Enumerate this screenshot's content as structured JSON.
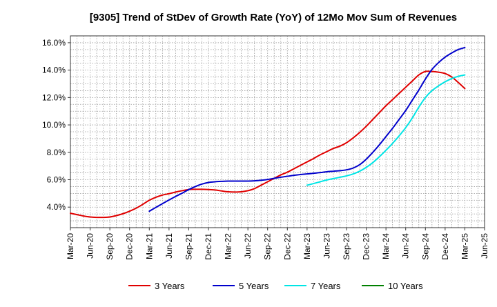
{
  "chart_data": {
    "type": "line",
    "title": "[9305]  Trend of StDev of Growth Rate (YoY) of 12Mo Mov Sum of Revenues",
    "xlabel": "",
    "ylabel": "",
    "ylim": [
      2.5,
      16.5
    ],
    "grid": true,
    "legend_position": "bottom",
    "x_ticks": [
      "Mar-20",
      "Jun-20",
      "Sep-20",
      "Dec-20",
      "Mar-21",
      "Jun-21",
      "Sep-21",
      "Dec-21",
      "Mar-22",
      "Jun-22",
      "Sep-22",
      "Dec-22",
      "Mar-23",
      "Jun-23",
      "Sep-23",
      "Dec-23",
      "Mar-24",
      "Jun-24",
      "Sep-24",
      "Dec-24",
      "Mar-25",
      "Jun-25"
    ],
    "y_ticks": [
      4.0,
      6.0,
      8.0,
      10.0,
      12.0,
      14.0,
      16.0
    ],
    "y_tick_labels": [
      "4.0%",
      "6.0%",
      "8.0%",
      "10.0%",
      "12.0%",
      "14.0%",
      "16.0%"
    ],
    "series": [
      {
        "name": "3 Years",
        "color": "#e00000",
        "x": [
          "Mar-20",
          "Apr-20",
          "May-20",
          "Jun-20",
          "Jul-20",
          "Aug-20",
          "Sep-20",
          "Oct-20",
          "Nov-20",
          "Dec-20",
          "Jan-21",
          "Feb-21",
          "Mar-21",
          "Apr-21",
          "May-21",
          "Jun-21",
          "Jul-21",
          "Aug-21",
          "Sep-21",
          "Oct-21",
          "Nov-21",
          "Dec-21",
          "Jan-22",
          "Feb-22",
          "Mar-22",
          "Apr-22",
          "May-22",
          "Jun-22",
          "Jul-22",
          "Aug-22",
          "Sep-22",
          "Oct-22",
          "Nov-22",
          "Dec-22",
          "Jan-23",
          "Feb-23",
          "Mar-23",
          "Apr-23",
          "May-23",
          "Jun-23",
          "Jul-23",
          "Aug-23",
          "Sep-23",
          "Oct-23",
          "Nov-23",
          "Dec-23",
          "Jan-24",
          "Feb-24",
          "Mar-24",
          "Apr-24",
          "May-24",
          "Jun-24",
          "Jul-24",
          "Aug-24",
          "Sep-24",
          "Oct-24",
          "Nov-24",
          "Dec-24",
          "Jan-25",
          "Feb-25",
          "Mar-25"
        ],
        "values": [
          3.55,
          3.45,
          3.35,
          3.28,
          3.25,
          3.25,
          3.28,
          3.38,
          3.52,
          3.7,
          3.92,
          4.2,
          4.5,
          4.72,
          4.88,
          4.98,
          5.1,
          5.2,
          5.28,
          5.3,
          5.3,
          5.28,
          5.25,
          5.18,
          5.12,
          5.1,
          5.12,
          5.2,
          5.35,
          5.6,
          5.85,
          6.1,
          6.35,
          6.55,
          6.8,
          7.05,
          7.3,
          7.55,
          7.82,
          8.05,
          8.28,
          8.45,
          8.7,
          9.05,
          9.45,
          9.9,
          10.4,
          10.9,
          11.4,
          11.85,
          12.3,
          12.75,
          13.2,
          13.65,
          13.9,
          13.9,
          13.85,
          13.75,
          13.5,
          13.1,
          12.65
        ]
      },
      {
        "name": "5 Years",
        "color": "#0000cc",
        "x": [
          "Mar-21",
          "Apr-21",
          "May-21",
          "Jun-21",
          "Jul-21",
          "Aug-21",
          "Sep-21",
          "Oct-21",
          "Nov-21",
          "Dec-21",
          "Jan-22",
          "Feb-22",
          "Mar-22",
          "Apr-22",
          "May-22",
          "Jun-22",
          "Jul-22",
          "Aug-22",
          "Sep-22",
          "Oct-22",
          "Nov-22",
          "Dec-22",
          "Jan-23",
          "Feb-23",
          "Mar-23",
          "Apr-23",
          "May-23",
          "Jun-23",
          "Jul-23",
          "Aug-23",
          "Sep-23",
          "Oct-23",
          "Nov-23",
          "Dec-23",
          "Jan-24",
          "Feb-24",
          "Mar-24",
          "Apr-24",
          "May-24",
          "Jun-24",
          "Jul-24",
          "Aug-24",
          "Sep-24",
          "Oct-24",
          "Nov-24",
          "Dec-24",
          "Jan-25",
          "Feb-25",
          "Mar-25"
        ],
        "values": [
          3.7,
          3.98,
          4.25,
          4.52,
          4.78,
          5.02,
          5.28,
          5.5,
          5.68,
          5.8,
          5.85,
          5.88,
          5.9,
          5.9,
          5.9,
          5.9,
          5.92,
          5.96,
          6.02,
          6.1,
          6.18,
          6.25,
          6.32,
          6.38,
          6.42,
          6.47,
          6.52,
          6.58,
          6.62,
          6.66,
          6.72,
          6.85,
          7.1,
          7.5,
          8.0,
          8.55,
          9.15,
          9.75,
          10.4,
          11.05,
          11.8,
          12.55,
          13.35,
          14.05,
          14.55,
          14.95,
          15.25,
          15.5,
          15.65
        ]
      },
      {
        "name": "7 Years",
        "color": "#00e5e5",
        "x": [
          "Mar-23",
          "Apr-23",
          "May-23",
          "Jun-23",
          "Jul-23",
          "Aug-23",
          "Sep-23",
          "Oct-23",
          "Nov-23",
          "Dec-23",
          "Jan-24",
          "Feb-24",
          "Mar-24",
          "Apr-24",
          "May-24",
          "Jun-24",
          "Jul-24",
          "Aug-24",
          "Sep-24",
          "Oct-24",
          "Nov-24",
          "Dec-24",
          "Jan-25",
          "Feb-25",
          "Mar-25"
        ],
        "values": [
          5.6,
          5.72,
          5.85,
          5.98,
          6.08,
          6.18,
          6.28,
          6.42,
          6.62,
          6.9,
          7.25,
          7.68,
          8.15,
          8.65,
          9.2,
          9.8,
          10.5,
          11.3,
          12.0,
          12.5,
          12.85,
          13.15,
          13.38,
          13.55,
          13.65
        ]
      },
      {
        "name": "10 Years",
        "color": "#008000",
        "x": [],
        "values": []
      }
    ]
  }
}
